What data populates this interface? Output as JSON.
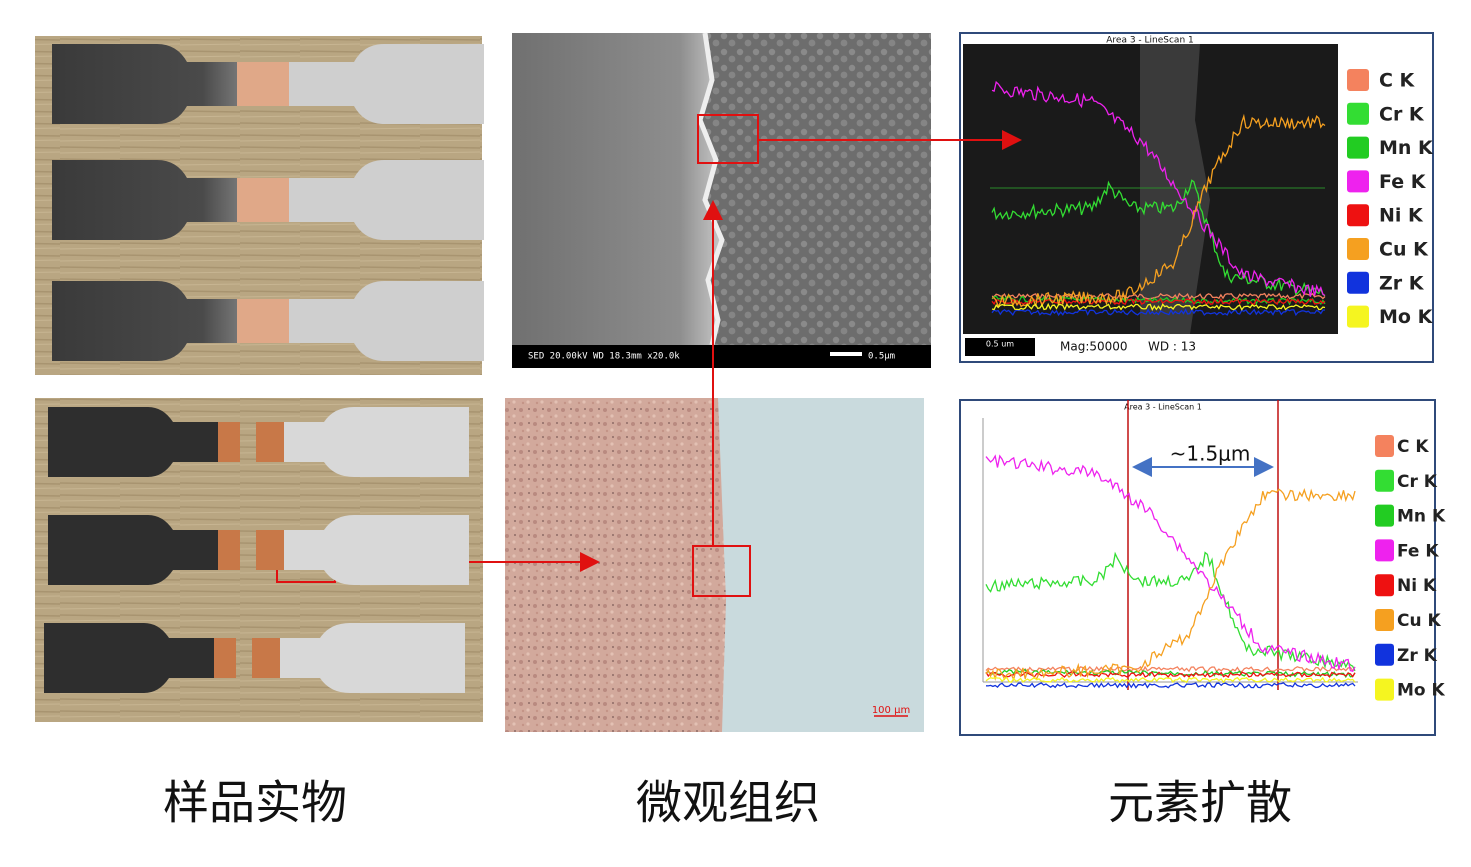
{
  "captions": [
    "样品实物",
    "微观组织",
    "元素扩散"
  ],
  "sem": {
    "info": "SED   20.00kV WD 18.3mm  x20.0k",
    "scale": "0.5μm"
  },
  "optical": {
    "scale": "100 μm"
  },
  "elements": [
    {
      "label": "C K",
      "color": "#f4825e"
    },
    {
      "label": "Cr K",
      "color": "#33dd33"
    },
    {
      "label": "Mn K",
      "color": "#22cc22"
    },
    {
      "label": "Fe K",
      "color": "#ee22ee"
    },
    {
      "label": "Ni K",
      "color": "#ee1111"
    },
    {
      "label": "Cu K",
      "color": "#f5a020"
    },
    {
      "label": "Zr K",
      "color": "#1133dd"
    },
    {
      "label": "Mo K",
      "color": "#f5f520"
    }
  ],
  "linescan_top": {
    "title": "Area 3 - LineScan 1",
    "scale": "0.5 um",
    "mag": "Mag:50000",
    "wd": "WD : 13"
  },
  "linescan_bottom": {
    "title": "Area 3 - LineScan 1",
    "annotation": "~1.5μm"
  }
}
